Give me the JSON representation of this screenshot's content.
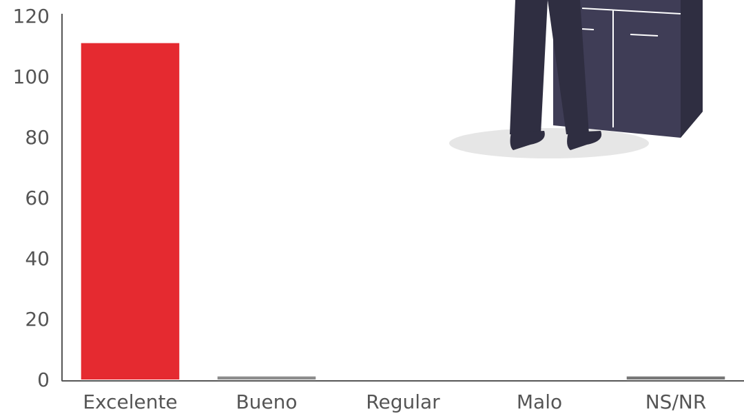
{
  "chart_data": {
    "type": "bar",
    "categories": [
      "Excelente",
      "Bueno",
      "Regular",
      "Malo",
      "NS/NR"
    ],
    "values": [
      111,
      1,
      0,
      0,
      1
    ],
    "colors": [
      "#e52a30",
      "#8c8c8c",
      "#8c8c8c",
      "#8c8c8c",
      "#777777"
    ],
    "ylim": [
      0,
      120
    ],
    "yticks": [
      0,
      20,
      40,
      60,
      80,
      100,
      120
    ],
    "grid": false
  }
}
